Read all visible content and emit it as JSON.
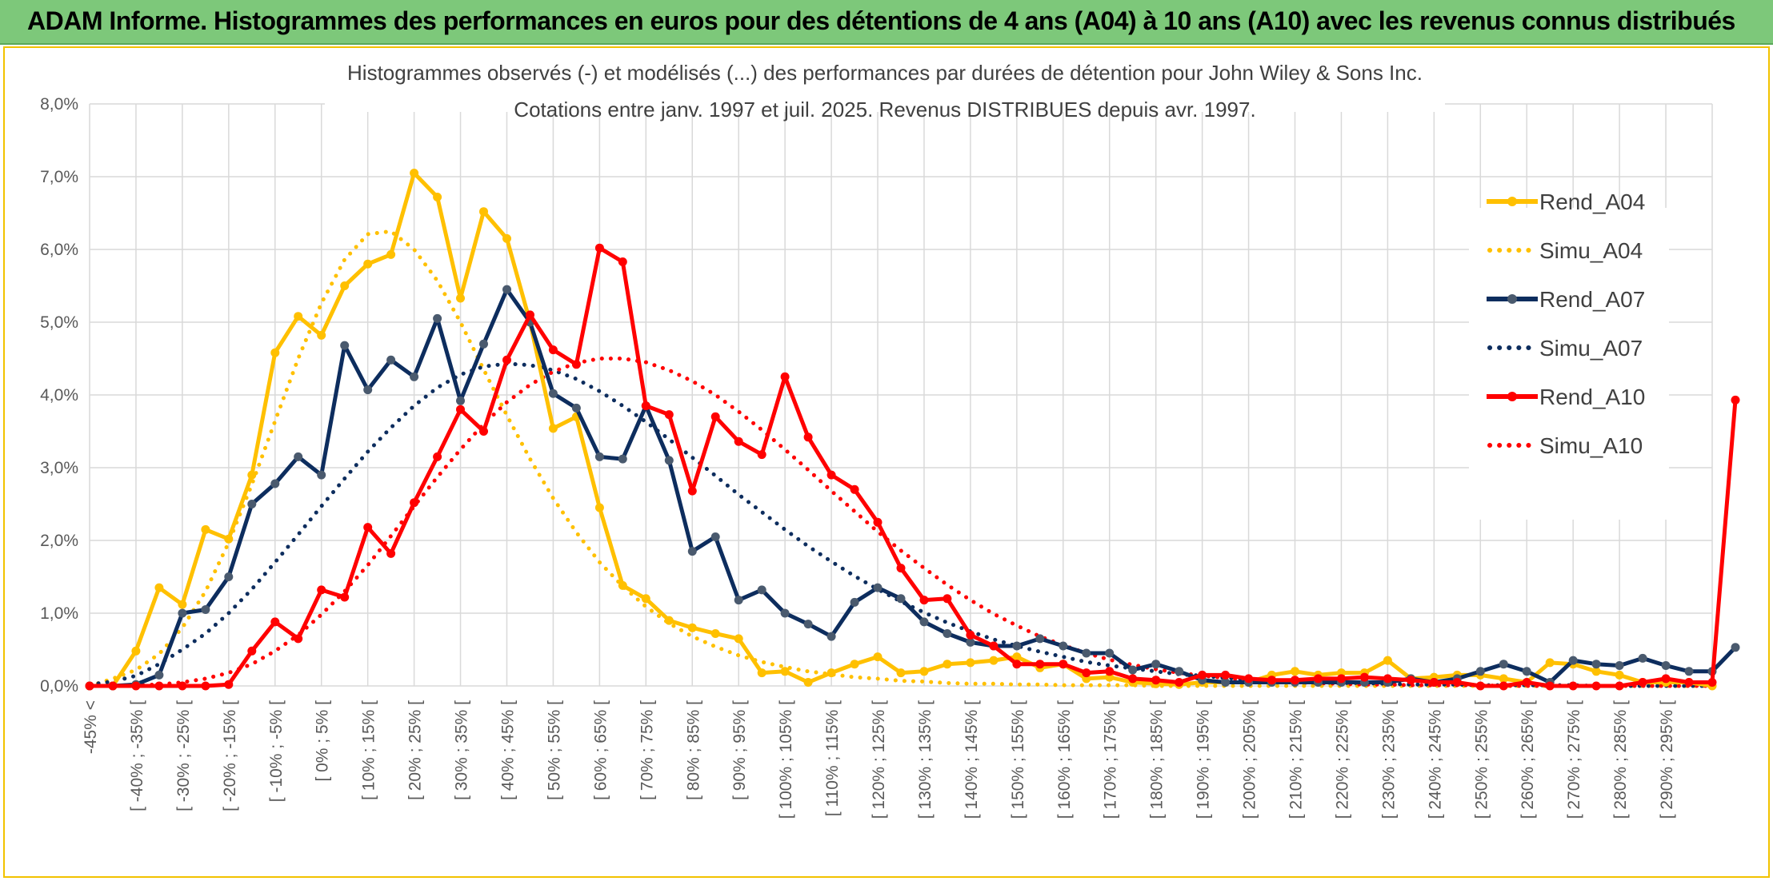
{
  "header": {
    "title": "ADAM Informe. Histogrammes des performances en euros pour des détentions de 4 ans (A04) à 10 ans (A10) avec les revenus connus distribués"
  },
  "colors": {
    "banner": "#7dc87a",
    "a04": "#ffc000",
    "a07": "#0d2d5e",
    "a10": "#ff0000",
    "grid": "#d9d9d9"
  },
  "chart_data": {
    "type": "line",
    "title": "Histogrammes observés (-) et modélisés (...) des performances par durées de détention pour John Wiley & Sons Inc.",
    "subtitle": "Cotations entre janv. 1997 et juil. 2025. Revenus DISTRIBUES depuis avr. 1997.",
    "xlabel": "",
    "ylabel": "",
    "ylim": [
      0,
      8
    ],
    "yticks": [
      "0,0%",
      "1,0%",
      "2,0%",
      "3,0%",
      "4,0%",
      "5,0%",
      "6,0%",
      "7,0%",
      "8,0%"
    ],
    "xtick_labels": [
      "-45% <",
      "[ -40% ; -35% [",
      "[ -30% ; -25% [",
      "[ -20% ; -15% [",
      "[ -10% ; -5% [",
      "[ 0% ; 5% [",
      "[ 10% ; 15% [",
      "[ 20% ; 25% [",
      "[ 30% ; 35% [",
      "[ 40% ; 45% [",
      "[ 50% ; 55% [",
      "[ 60% ; 65% [",
      "[ 70% ; 75% [",
      "[ 80% ; 85% [",
      "[ 90% ; 95% [",
      "[ 100% ; 105% [",
      "[ 110% ; 115% [",
      "[ 120% ; 125% [",
      "[ 130% ; 135% [",
      "[ 140% ; 145% [",
      "[ 150% ; 155% [",
      "[ 160% ; 165% [",
      "[ 170% ; 175% [",
      "[ 180% ; 185% [",
      "[ 190% ; 195% [",
      "[ 200% ; 205% [",
      "[ 210% ; 215% [",
      "[ 220% ; 225% [",
      "[ 230% ; 235% [",
      "[ 240% ; 245% [",
      "[ 250% ; 255% [",
      "[ 260% ; 265% [",
      "[ 270% ; 275% [",
      "[ 280% ; 285% [",
      "[ 290% ; 295% ["
    ],
    "grid": true,
    "legend_position": "right",
    "series": [
      {
        "name": "Rend_A04",
        "style": "solid",
        "color": "#ffc000",
        "values": [
          0,
          0,
          0.48,
          1.35,
          1.12,
          2.15,
          2.02,
          2.9,
          4.58,
          5.08,
          4.82,
          5.5,
          5.8,
          5.93,
          7.05,
          6.72,
          5.33,
          6.52,
          6.15,
          5.0,
          3.54,
          3.7,
          2.45,
          1.38,
          1.2,
          0.9,
          0.8,
          0.72,
          0.65,
          0.18,
          0.2,
          0.05,
          0.18,
          0.3,
          0.4,
          0.18,
          0.2,
          0.3,
          0.32,
          0.35,
          0.4,
          0.25,
          0.3,
          0.1,
          0.12,
          0.05,
          0.03,
          0.02,
          0.05,
          0.05,
          0.05,
          0.15,
          0.2,
          0.15,
          0.18,
          0.18,
          0.35,
          0.1,
          0.12,
          0.15,
          0.15,
          0.1,
          0.05,
          0.32,
          0.3,
          0.2,
          0.15,
          0.05,
          0.05,
          0.05,
          0.0
        ]
      },
      {
        "name": "Simu_A04",
        "style": "dotted",
        "color": "#ffc000",
        "values": [
          0.0,
          0.1,
          0.22,
          0.44,
          0.8,
          1.3,
          1.97,
          2.77,
          3.64,
          4.5,
          5.26,
          5.86,
          6.21,
          6.25,
          6.0,
          5.57,
          5.0,
          4.35,
          3.72,
          3.12,
          2.58,
          2.11,
          1.7,
          1.37,
          1.09,
          0.86,
          0.68,
          0.54,
          0.42,
          0.33,
          0.26,
          0.2,
          0.16,
          0.12,
          0.1,
          0.07,
          0.06,
          0.04,
          0.03,
          0.03,
          0.02,
          0.02,
          0.01,
          0.01,
          0.01,
          0.01,
          0.0,
          0.0,
          0.0,
          0.0,
          0.0,
          0.0,
          0.0,
          0.0,
          0.0,
          0.0,
          0.0,
          0.0,
          0.0,
          0.0,
          0.0,
          0.0,
          0.0,
          0.0,
          0.0,
          0.0,
          0.0,
          0.0,
          0.0,
          0.0,
          0.0
        ]
      },
      {
        "name": "Rend_A07",
        "style": "solid",
        "color": "#0d2d5e",
        "values": [
          0,
          0,
          0.02,
          0.15,
          1.0,
          1.05,
          1.5,
          2.5,
          2.78,
          3.15,
          2.9,
          4.68,
          4.07,
          4.48,
          4.25,
          5.05,
          3.92,
          4.7,
          5.45,
          5.0,
          4.02,
          3.82,
          3.15,
          3.12,
          3.85,
          3.1,
          1.85,
          2.05,
          1.18,
          1.32,
          1.0,
          0.85,
          0.68,
          1.15,
          1.35,
          1.2,
          0.88,
          0.72,
          0.6,
          0.55,
          0.55,
          0.65,
          0.55,
          0.45,
          0.45,
          0.22,
          0.3,
          0.2,
          0.08,
          0.05,
          0.05,
          0.05,
          0.05,
          0.05,
          0.05,
          0.05,
          0.05,
          0.1,
          0.05,
          0.1,
          0.2,
          0.3,
          0.2,
          0.05,
          0.35,
          0.3,
          0.28,
          0.38,
          0.28,
          0.2,
          0.2,
          0.53
        ]
      },
      {
        "name": "Simu_A07",
        "style": "dotted",
        "color": "#0d2d5e",
        "values": [
          0.02,
          0.06,
          0.14,
          0.3,
          0.5,
          0.72,
          1.0,
          1.33,
          1.7,
          2.08,
          2.47,
          2.85,
          3.22,
          3.55,
          3.85,
          4.1,
          4.28,
          4.39,
          4.43,
          4.41,
          4.34,
          4.22,
          4.05,
          3.85,
          3.63,
          3.39,
          3.14,
          2.89,
          2.63,
          2.39,
          2.15,
          1.92,
          1.71,
          1.51,
          1.33,
          1.16,
          1.01,
          0.87,
          0.75,
          0.64,
          0.55,
          0.47,
          0.4,
          0.33,
          0.28,
          0.24,
          0.2,
          0.16,
          0.14,
          0.11,
          0.09,
          0.08,
          0.06,
          0.05,
          0.04,
          0.04,
          0.03,
          0.02,
          0.02,
          0.02,
          0.01,
          0.01,
          0.01,
          0.01,
          0.01,
          0.0,
          0.0,
          0.0,
          0.0,
          0.0,
          0.0
        ]
      },
      {
        "name": "Rend_A10",
        "style": "solid",
        "color": "#ff0000",
        "values": [
          0,
          0,
          0,
          0,
          0,
          0,
          0.02,
          0.48,
          0.88,
          0.65,
          1.32,
          1.22,
          2.18,
          1.82,
          2.52,
          3.15,
          3.8,
          3.5,
          4.48,
          5.1,
          4.62,
          4.42,
          6.02,
          5.83,
          3.85,
          3.73,
          2.68,
          3.7,
          3.36,
          3.18,
          4.25,
          3.42,
          2.9,
          2.7,
          2.25,
          1.62,
          1.18,
          1.2,
          0.7,
          0.55,
          0.3,
          0.3,
          0.3,
          0.18,
          0.2,
          0.1,
          0.08,
          0.05,
          0.15,
          0.15,
          0.1,
          0.08,
          0.08,
          0.1,
          0.1,
          0.12,
          0.1,
          0.08,
          0.05,
          0.05,
          0.0,
          0.0,
          0.05,
          0.0,
          0.0,
          0.0,
          0.0,
          0.05,
          0.1,
          0.05,
          0.05,
          3.93
        ]
      },
      {
        "name": "Simu_A10",
        "style": "dotted",
        "color": "#ff0000",
        "values": [
          0.0,
          0.0,
          0.01,
          0.02,
          0.05,
          0.1,
          0.18,
          0.3,
          0.48,
          0.7,
          0.98,
          1.3,
          1.66,
          2.06,
          2.47,
          2.87,
          3.25,
          3.6,
          3.9,
          4.14,
          4.32,
          4.44,
          4.5,
          4.5,
          4.45,
          4.34,
          4.19,
          4.0,
          3.77,
          3.52,
          3.25,
          2.97,
          2.68,
          2.4,
          2.12,
          1.86,
          1.62,
          1.39,
          1.18,
          0.99,
          0.83,
          0.68,
          0.56,
          0.45,
          0.36,
          0.29,
          0.23,
          0.18,
          0.14,
          0.11,
          0.08,
          0.06,
          0.05,
          0.04,
          0.03,
          0.02,
          0.02,
          0.01,
          0.01,
          0.01,
          0.01,
          0.0,
          0.0,
          0.0,
          0.0,
          0.0,
          0.0,
          0.0,
          0.0,
          0.0,
          0.0
        ]
      }
    ]
  }
}
